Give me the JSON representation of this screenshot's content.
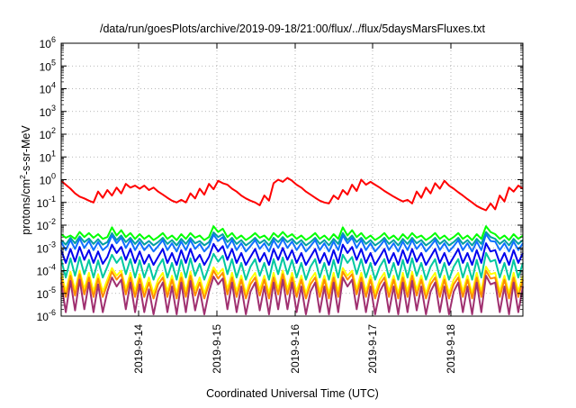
{
  "chart_data": {
    "type": "line",
    "title": "/data/run/goesPlots/archive/2019-09-18/21:00/flux/../flux/5daysMarsFluxes.txt",
    "xlabel": "Coordinated Universal Time (UTC)",
    "ylabel_parts": [
      "protons/cm",
      "2",
      "-s-sr-MeV"
    ],
    "y_log_scale": true,
    "ylim": [
      1e-06,
      1000000.0
    ],
    "y_ticks": [
      {
        "base": "10",
        "exp": "-6",
        "value": 1e-06
      },
      {
        "base": "10",
        "exp": "-5",
        "value": 1e-05
      },
      {
        "base": "10",
        "exp": "-4",
        "value": 0.0001
      },
      {
        "base": "10",
        "exp": "-3",
        "value": 0.001
      },
      {
        "base": "10",
        "exp": "-2",
        "value": 0.01
      },
      {
        "base": "10",
        "exp": "-1",
        "value": 0.1
      },
      {
        "base": "10",
        "exp": "0",
        "value": 1
      },
      {
        "base": "10",
        "exp": "1",
        "value": 10
      },
      {
        "base": "10",
        "exp": "2",
        "value": 100
      },
      {
        "base": "10",
        "exp": "3",
        "value": 1000
      },
      {
        "base": "10",
        "exp": "4",
        "value": 10000
      },
      {
        "base": "10",
        "exp": "5",
        "value": 100000
      },
      {
        "base": "10",
        "exp": "6",
        "value": 1000000
      }
    ],
    "x_ticks": [
      "2019-9-14",
      "2019-9-15",
      "2019-9-16",
      "2019-9-17",
      "2019-9-18"
    ],
    "grid": true,
    "legend": "none",
    "series": [
      {
        "color": "#ff0000",
        "values": [
          0.9,
          0.6,
          0.4,
          0.25,
          0.18,
          0.15,
          0.12,
          0.1,
          0.3,
          0.16,
          0.35,
          0.2,
          0.45,
          0.25,
          0.65,
          0.45,
          0.55,
          0.4,
          0.55,
          0.35,
          0.45,
          0.3,
          0.22,
          0.16,
          0.12,
          0.1,
          0.13,
          0.1,
          0.25,
          0.15,
          0.4,
          0.22,
          0.65,
          0.38,
          0.9,
          0.7,
          0.6,
          0.4,
          0.3,
          0.2,
          0.15,
          0.12,
          0.1,
          0.075,
          0.2,
          0.12,
          0.7,
          1.0,
          0.8,
          1.2,
          0.9,
          0.6,
          0.45,
          0.3,
          0.22,
          0.16,
          0.12,
          0.1,
          0.09,
          0.2,
          0.14,
          0.35,
          0.22,
          0.6,
          0.32,
          1.0,
          0.6,
          0.8,
          0.6,
          0.45,
          0.32,
          0.24,
          0.18,
          0.14,
          0.11,
          0.13,
          0.09,
          0.3,
          0.16,
          0.45,
          0.25,
          0.7,
          0.4,
          0.9,
          0.55,
          0.4,
          0.28,
          0.2,
          0.14,
          0.1,
          0.07,
          0.055,
          0.045,
          0.09,
          0.05,
          0.2,
          0.11,
          0.45,
          0.3,
          0.55,
          0.4
        ]
      },
      {
        "color": "#00ff00",
        "values": [
          0.004,
          0.0028,
          0.0035,
          0.0025,
          0.005,
          0.003,
          0.0045,
          0.0028,
          0.004,
          0.0025,
          0.003,
          0.008,
          0.0035,
          0.006,
          0.003,
          0.0045,
          0.0025,
          0.004,
          0.0025,
          0.0035,
          0.0022,
          0.003,
          0.0045,
          0.0025,
          0.0035,
          0.0022,
          0.004,
          0.0025,
          0.0045,
          0.0028,
          0.0035,
          0.0022,
          0.003,
          0.009,
          0.005,
          0.007,
          0.003,
          0.0045,
          0.0025,
          0.0035,
          0.0022,
          0.003,
          0.0045,
          0.0028,
          0.0035,
          0.0022,
          0.0045,
          0.003,
          0.005,
          0.003,
          0.004,
          0.0025,
          0.0035,
          0.0022,
          0.003,
          0.0045,
          0.0025,
          0.0035,
          0.0022,
          0.004,
          0.0025,
          0.008,
          0.0035,
          0.006,
          0.003,
          0.0045,
          0.0025,
          0.0035,
          0.0022,
          0.003,
          0.0045,
          0.0025,
          0.0035,
          0.0022,
          0.004,
          0.0025,
          0.0045,
          0.0028,
          0.0035,
          0.0022,
          0.003,
          0.0045,
          0.0025,
          0.0035,
          0.0022,
          0.003,
          0.0045,
          0.0025,
          0.0035,
          0.0022,
          0.004,
          0.0025,
          0.009,
          0.005,
          0.004,
          0.0025,
          0.0035,
          0.0022,
          0.004,
          0.0025,
          0.0035
        ]
      },
      {
        "color": "#00a0a0",
        "values": [
          0.0022,
          0.0014,
          0.0028,
          0.0016,
          0.0032,
          0.0018,
          0.0026,
          0.0015,
          0.0024,
          0.0014,
          0.0018,
          0.0045,
          0.0022,
          0.0035,
          0.0018,
          0.0028,
          0.0015,
          0.0025,
          0.0014,
          0.002,
          0.0013,
          0.0018,
          0.0028,
          0.0015,
          0.0022,
          0.0013,
          0.0025,
          0.0015,
          0.0028,
          0.0016,
          0.002,
          0.0013,
          0.0018,
          0.0048,
          0.003,
          0.004,
          0.0018,
          0.0028,
          0.0015,
          0.0022,
          0.0013,
          0.0018,
          0.0028,
          0.0016,
          0.0022,
          0.0013,
          0.0028,
          0.0018,
          0.003,
          0.0018,
          0.0025,
          0.0015,
          0.0022,
          0.0013,
          0.0018,
          0.0028,
          0.0015,
          0.0022,
          0.0013,
          0.0025,
          0.0015,
          0.0045,
          0.0022,
          0.0035,
          0.0018,
          0.0028,
          0.0015,
          0.0022,
          0.0013,
          0.0018,
          0.0028,
          0.0015,
          0.0022,
          0.0013,
          0.0025,
          0.0015,
          0.0028,
          0.0016,
          0.0022,
          0.0013,
          0.0018,
          0.0028,
          0.0015,
          0.0022,
          0.0013,
          0.0018,
          0.0028,
          0.0015,
          0.0022,
          0.0013,
          0.0025,
          0.0015,
          0.005,
          0.003,
          0.0025,
          0.0015,
          0.0022,
          0.0013,
          0.0025,
          0.0015,
          0.0022
        ]
      },
      {
        "color": "#1070ff",
        "values": [
          0.0018,
          0.0008,
          0.0022,
          0.0009,
          0.0026,
          0.001,
          0.002,
          0.0008,
          0.0018,
          0.0008,
          0.0012,
          0.0035,
          0.0016,
          0.0028,
          0.001,
          0.0022,
          0.0008,
          0.0018,
          0.0008,
          0.0014,
          0.0007,
          0.0012,
          0.0022,
          0.0008,
          0.0016,
          0.0007,
          0.0019,
          0.0008,
          0.0022,
          0.0009,
          0.0015,
          0.0007,
          0.0012,
          0.0038,
          0.002,
          0.003,
          0.001,
          0.0022,
          0.0008,
          0.0016,
          0.0007,
          0.0012,
          0.0022,
          0.0009,
          0.0016,
          0.0007,
          0.0022,
          0.001,
          0.0024,
          0.001,
          0.0019,
          0.0008,
          0.0016,
          0.0007,
          0.0012,
          0.0022,
          0.0008,
          0.0016,
          0.0007,
          0.0019,
          0.0008,
          0.0035,
          0.0016,
          0.0028,
          0.001,
          0.0022,
          0.0008,
          0.0016,
          0.0007,
          0.0012,
          0.0022,
          0.0008,
          0.0016,
          0.0007,
          0.0019,
          0.0008,
          0.0022,
          0.0009,
          0.0016,
          0.0007,
          0.0012,
          0.0022,
          0.0008,
          0.0016,
          0.0007,
          0.0012,
          0.0022,
          0.0008,
          0.0016,
          0.0007,
          0.0019,
          0.0008,
          0.004,
          0.002,
          0.0019,
          0.0008,
          0.0016,
          0.0007,
          0.0019,
          0.0008,
          0.0016
        ]
      },
      {
        "color": "#0000ee",
        "values": [
          0.0008,
          0.00022,
          0.0009,
          0.00025,
          0.0011,
          0.0003,
          0.0008,
          0.00022,
          0.0007,
          0.0002,
          0.0004,
          0.0014,
          0.0006,
          0.0011,
          0.0003,
          0.0009,
          0.00022,
          0.0007,
          0.0002,
          0.0005,
          0.00018,
          0.0004,
          0.0009,
          0.00022,
          0.0006,
          0.00018,
          0.0008,
          0.00022,
          0.0009,
          0.00025,
          0.0005,
          0.00018,
          0.0004,
          0.0015,
          0.0007,
          0.0012,
          0.0003,
          0.0009,
          0.00022,
          0.0006,
          0.00018,
          0.0004,
          0.0009,
          0.00025,
          0.0006,
          0.00018,
          0.0009,
          0.0003,
          0.001,
          0.0003,
          0.0008,
          0.00022,
          0.0006,
          0.00018,
          0.0004,
          0.0009,
          0.00022,
          0.0006,
          0.00018,
          0.0008,
          0.00022,
          0.0014,
          0.0006,
          0.0011,
          0.0003,
          0.0009,
          0.00022,
          0.0006,
          0.00018,
          0.0004,
          0.0009,
          0.00022,
          0.0006,
          0.00018,
          0.0008,
          0.00022,
          0.0009,
          0.00025,
          0.0006,
          0.00018,
          0.0004,
          0.0009,
          0.00022,
          0.0006,
          0.00018,
          0.0004,
          0.0009,
          0.00022,
          0.0006,
          0.00018,
          0.0008,
          0.00022,
          0.0016,
          0.0007,
          0.0008,
          0.00022,
          0.0006,
          0.00018,
          0.0008,
          0.00022,
          0.0006
        ]
      },
      {
        "color": "#00c8a0",
        "values": [
          0.0003,
          5e-05,
          0.00035,
          6e-05,
          0.0004,
          7e-05,
          0.0003,
          5e-05,
          0.00028,
          5e-05,
          0.00015,
          0.0005,
          0.00022,
          0.0004,
          7e-05,
          0.00032,
          5e-05,
          0.00028,
          5e-05,
          0.0002,
          4e-05,
          0.00015,
          0.00032,
          5e-05,
          0.00022,
          4e-05,
          0.0003,
          5e-05,
          0.00035,
          6e-05,
          0.0002,
          4e-05,
          0.00015,
          0.00055,
          0.00025,
          0.00045,
          7e-05,
          0.00032,
          5e-05,
          0.00022,
          4e-05,
          0.00015,
          0.00032,
          6e-05,
          0.00022,
          4e-05,
          0.00032,
          7e-05,
          0.00038,
          7e-05,
          0.0003,
          5e-05,
          0.00022,
          4e-05,
          0.00015,
          0.00032,
          5e-05,
          0.00022,
          4e-05,
          0.0003,
          5e-05,
          0.0005,
          0.00022,
          0.0004,
          7e-05,
          0.00032,
          5e-05,
          0.00022,
          4e-05,
          0.00015,
          0.00032,
          5e-05,
          0.00022,
          4e-05,
          0.0003,
          5e-05,
          0.00035,
          6e-05,
          0.00022,
          4e-05,
          0.00015,
          0.00032,
          5e-05,
          0.00022,
          4e-05,
          0.00015,
          0.00032,
          5e-05,
          0.00022,
          4e-05,
          0.0003,
          5e-05,
          0.0006,
          0.00025,
          0.0003,
          5e-05,
          0.00022,
          4e-05,
          0.0003,
          5e-05,
          0.00022
        ]
      },
      {
        "color": "#ffff00",
        "values": [
          8e-05,
          1.2e-05,
          9e-05,
          1.4e-05,
          0.0001,
          1.5e-05,
          8e-05,
          1.2e-05,
          7e-05,
          1.2e-05,
          4e-05,
          0.00013,
          6e-05,
          0.0001,
          1.5e-05,
          8e-05,
          1.2e-05,
          7e-05,
          1.2e-05,
          5e-05,
          1e-05,
          4e-05,
          8e-05,
          1.2e-05,
          6e-05,
          1e-05,
          8e-05,
          1.2e-05,
          9e-05,
          1.4e-05,
          5e-05,
          1e-05,
          4e-05,
          0.00014,
          7e-05,
          0.00012,
          1.5e-05,
          8e-05,
          1.2e-05,
          6e-05,
          1e-05,
          4e-05,
          8e-05,
          1.4e-05,
          6e-05,
          1e-05,
          8e-05,
          1.5e-05,
          0.0001,
          1.5e-05,
          8e-05,
          1.2e-05,
          6e-05,
          1e-05,
          4e-05,
          8e-05,
          1.2e-05,
          6e-05,
          1e-05,
          8e-05,
          1.2e-05,
          0.00013,
          6e-05,
          0.0001,
          1.5e-05,
          8e-05,
          1.2e-05,
          6e-05,
          1e-05,
          4e-05,
          8e-05,
          1.2e-05,
          6e-05,
          1e-05,
          8e-05,
          1.2e-05,
          9e-05,
          1.4e-05,
          6e-05,
          1e-05,
          4e-05,
          8e-05,
          1.2e-05,
          6e-05,
          1e-05,
          4e-05,
          8e-05,
          1.2e-05,
          6e-05,
          1e-05,
          8e-05,
          1.2e-05,
          0.00015,
          7e-05,
          8e-05,
          1.2e-05,
          6e-05,
          1e-05,
          8e-05,
          1.2e-05,
          6e-05
        ]
      },
      {
        "color": "#ff8c00",
        "values": [
          5e-05,
          7e-06,
          6e-05,
          8e-06,
          7e-05,
          9e-06,
          5e-05,
          7e-06,
          4.5e-05,
          7e-06,
          2.5e-05,
          9e-05,
          4e-05,
          7e-05,
          9e-06,
          5e-05,
          7e-06,
          4.5e-05,
          7e-06,
          3e-05,
          6e-06,
          2.5e-05,
          5e-05,
          7e-06,
          4e-05,
          6e-06,
          5e-05,
          7e-06,
          6e-05,
          8e-06,
          3e-05,
          6e-06,
          2.5e-05,
          0.0001,
          4.5e-05,
          8e-05,
          9e-06,
          5e-05,
          7e-06,
          4e-05,
          6e-06,
          2.5e-05,
          5e-05,
          8e-06,
          4e-05,
          6e-06,
          5e-05,
          9e-06,
          7e-05,
          9e-06,
          5e-05,
          7e-06,
          4e-05,
          6e-06,
          2.5e-05,
          5e-05,
          7e-06,
          4e-05,
          6e-06,
          5e-05,
          7e-06,
          9e-05,
          4e-05,
          7e-05,
          9e-06,
          5e-05,
          7e-06,
          4e-05,
          6e-06,
          2.5e-05,
          5e-05,
          7e-06,
          4e-05,
          6e-06,
          5e-05,
          7e-06,
          6e-05,
          8e-06,
          4e-05,
          6e-06,
          2.5e-05,
          5e-05,
          7e-06,
          4e-05,
          6e-06,
          2.5e-05,
          5e-05,
          7e-06,
          4e-05,
          6e-06,
          5e-05,
          7e-06,
          0.0001,
          4.5e-05,
          5e-05,
          7e-06,
          4e-05,
          6e-06,
          5e-05,
          7e-06,
          4e-05
        ]
      },
      {
        "color": "#a03070",
        "values": [
          3e-05,
          1.5e-06,
          3.5e-05,
          1.8e-06,
          4e-05,
          2e-06,
          3e-05,
          1.5e-06,
          2.5e-05,
          1.5e-06,
          1.2e-05,
          5e-05,
          2e-05,
          4e-05,
          2e-06,
          3e-05,
          1.5e-06,
          2.5e-05,
          1.5e-06,
          1.5e-05,
          1.2e-06,
          1.2e-05,
          3e-05,
          1.5e-06,
          2e-05,
          1.2e-06,
          3e-05,
          1.5e-06,
          3.5e-05,
          1.8e-06,
          1.5e-05,
          1.2e-06,
          1.2e-05,
          5.5e-05,
          2.5e-05,
          4.5e-05,
          2e-06,
          3e-05,
          1.5e-06,
          2e-05,
          1.2e-06,
          1.2e-05,
          3e-05,
          1.8e-06,
          2e-05,
          1.2e-06,
          3e-05,
          2e-06,
          4e-05,
          2e-06,
          3e-05,
          1.5e-06,
          2e-05,
          1.2e-06,
          1.2e-05,
          3e-05,
          1.5e-06,
          2e-05,
          1.2e-06,
          3e-05,
          1.5e-06,
          5e-05,
          2e-05,
          4e-05,
          2e-06,
          3e-05,
          1.5e-06,
          2e-05,
          1.2e-06,
          1.2e-05,
          3e-05,
          1.5e-06,
          2e-05,
          1.2e-06,
          3e-05,
          1.5e-06,
          3.5e-05,
          1.8e-06,
          2e-05,
          1.2e-06,
          1.2e-05,
          3e-05,
          1.5e-06,
          2e-05,
          1.2e-06,
          1.2e-05,
          3e-05,
          1.5e-06,
          2e-05,
          1.2e-06,
          3e-05,
          1.5e-06,
          6e-05,
          2.5e-05,
          3e-05,
          1.5e-06,
          2e-05,
          1.2e-06,
          3e-05,
          1.5e-06,
          2e-05
        ]
      }
    ]
  }
}
